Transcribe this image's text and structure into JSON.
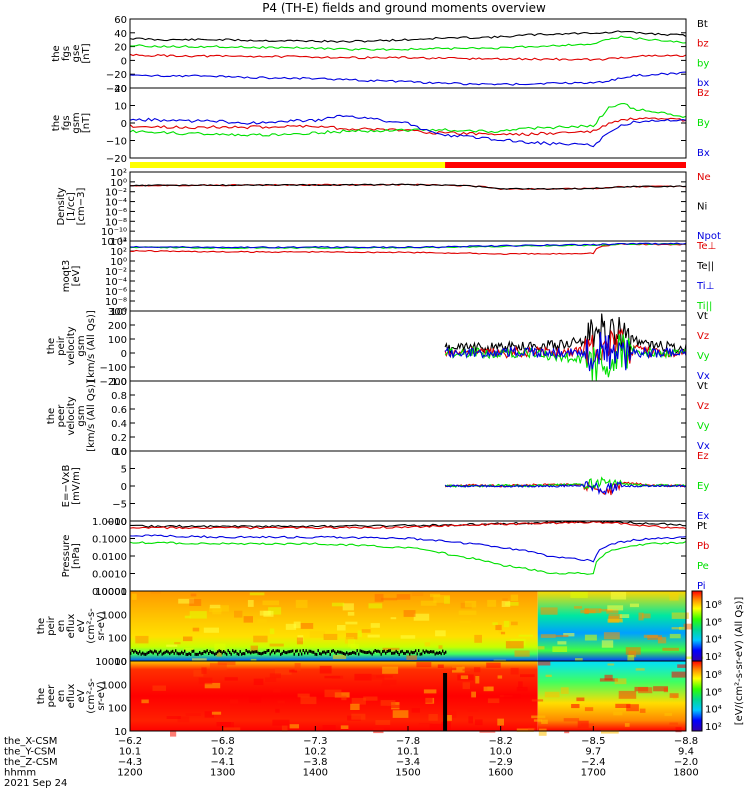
{
  "title": "P4 (TH-E) fields and ground moments overview",
  "colors": {
    "black": "#000000",
    "red": "#e00000",
    "green": "#00e000",
    "blue": "#0000e0",
    "yellow": "#ffff00",
    "barred": "#ff0000"
  },
  "panels": [
    {
      "id": "fgs-gse",
      "ylabel": [
        "the",
        "fgs",
        "gse",
        "[nT]"
      ],
      "yticks": [
        "60",
        "40",
        "20",
        "0",
        "−20",
        "−40"
      ],
      "ylim": [
        -40,
        60
      ],
      "legend": [
        {
          "text": "Bt",
          "color": "black"
        },
        {
          "text": "bz",
          "color": "red"
        },
        {
          "text": "by",
          "color": "green"
        },
        {
          "text": "bx",
          "color": "blue"
        }
      ]
    },
    {
      "id": "fgs-gsm",
      "ylabel": [
        "the",
        "fgs",
        "gsm",
        "[nT]"
      ],
      "yticks": [
        "20",
        "10",
        "0",
        "−10",
        "−20"
      ],
      "ylim": [
        -25,
        25
      ],
      "legend": [
        {
          "text": "Bz",
          "color": "red"
        },
        {
          "text": "By",
          "color": "green"
        },
        {
          "text": "Bx",
          "color": "blue"
        }
      ]
    },
    {
      "id": "density",
      "ylabel": [
        "Density",
        "[1/cc]",
        "[cm−3]"
      ],
      "yticks": [
        "10²",
        "10⁰",
        "10⁻²",
        "10⁻⁴",
        "10⁻⁶",
        "10⁻⁸",
        "10⁻¹⁰",
        "10⁻¹²"
      ],
      "legend": [
        {
          "text": "Ne",
          "color": "red"
        },
        {
          "text": "Ni",
          "color": "black"
        },
        {
          "text": "Npot",
          "color": "blue"
        }
      ]
    },
    {
      "id": "temperature",
      "ylabel": [
        "moqt3",
        "[eV]"
      ],
      "yticks": [
        "10⁴",
        "10²",
        "10⁰",
        "10⁻²",
        "10⁻⁴",
        "10⁻⁶",
        "10⁻⁸",
        "10⁰"
      ],
      "legend": [
        {
          "text": "Te⊥",
          "color": "red"
        },
        {
          "text": "Te||",
          "color": "black"
        },
        {
          "text": "Ti⊥",
          "color": "blue"
        },
        {
          "text": "Ti||",
          "color": "green"
        }
      ]
    },
    {
      "id": "peir-velocity",
      "ylabel": [
        "the",
        "peir",
        "velocity",
        "gsm",
        "[km/s (All Qs)]"
      ],
      "yticks": [
        "300",
        "200",
        "100",
        "0",
        "−100",
        "−200"
      ],
      "ylim": [
        -200,
        300
      ],
      "legend": [
        {
          "text": "Vt",
          "color": "black"
        },
        {
          "text": "Vz",
          "color": "red"
        },
        {
          "text": "Vy",
          "color": "green"
        },
        {
          "text": "Vx",
          "color": "blue"
        }
      ]
    },
    {
      "id": "peer-velocity",
      "ylabel": [
        "the",
        "peer",
        "velocity",
        "gsm",
        "[km/s (All Qs)]"
      ],
      "yticks": [
        "1.0",
        "0.8",
        "0.6",
        "0.4",
        "0.2",
        "0.0"
      ],
      "ylim": [
        0,
        1
      ],
      "legend": [
        {
          "text": "Vt",
          "color": "black"
        },
        {
          "text": "Vz",
          "color": "red"
        },
        {
          "text": "Vy",
          "color": "green"
        },
        {
          "text": "Vx",
          "color": "blue"
        }
      ]
    },
    {
      "id": "efield",
      "ylabel": [
        "E=−VxB",
        "[mV/m]"
      ],
      "yticks": [
        "10",
        "5",
        "0",
        "−5",
        "−10"
      ],
      "ylim": [
        -10,
        10
      ],
      "legend": [
        {
          "text": "Ez",
          "color": "red"
        },
        {
          "text": "Ey",
          "color": "green"
        },
        {
          "text": "Ex",
          "color": "blue"
        }
      ]
    },
    {
      "id": "pressure",
      "ylabel": [
        "Pressure",
        "[nPa]"
      ],
      "yticks": [
        "1.0000",
        "0.1000",
        "0.0100",
        "0.0010",
        "0.0001"
      ],
      "legend": [
        {
          "text": "Pt",
          "color": "black"
        },
        {
          "text": "Pb",
          "color": "red"
        },
        {
          "text": "Pe",
          "color": "green"
        },
        {
          "text": "Pi",
          "color": "blue"
        }
      ]
    },
    {
      "id": "peir-eflux",
      "ylabel": [
        "the",
        "peir",
        "en",
        "eflux",
        "eV",
        "(cm²-s-",
        "sr-eV)"
      ],
      "yticks": [
        "10000",
        "1000",
        "100",
        "10"
      ]
    },
    {
      "id": "peer-eflux",
      "ylabel": [
        "the",
        "peer",
        "en",
        "eflux",
        "eV",
        "(cm²-s-",
        "sr-eV)"
      ],
      "yticks": [
        "10000",
        "1000",
        "100",
        "10"
      ]
    }
  ],
  "colorbar": {
    "label": "[eV/(cm²-s-sr-eV) (All Qs)]",
    "ticks_top": [
      "10⁸",
      "10⁶",
      "10⁴",
      "10²"
    ],
    "ticks_bottom": [
      "10⁸",
      "10⁶",
      "10⁴",
      "10²"
    ]
  },
  "xaxis": {
    "rows": [
      {
        "label": "the_X-CSM",
        "values": [
          "−6.2",
          "−6.8",
          "−7.3",
          "−7.8",
          "−8.2",
          "−8.5",
          "−8.8"
        ]
      },
      {
        "label": "the_Y-CSM",
        "values": [
          "10.1",
          "10.2",
          "10.2",
          "10.1",
          "10.0",
          "9.7",
          "9.4"
        ]
      },
      {
        "label": "the_Z-CSM",
        "values": [
          "−4.3",
          "−4.1",
          "−3.8",
          "−3.4",
          "−2.9",
          "−2.4",
          "−2.0"
        ]
      },
      {
        "label": "hhmm",
        "values": [
          "1200",
          "1300",
          "1400",
          "1500",
          "1600",
          "1700",
          "1800"
        ]
      }
    ],
    "date": "2021 Sep 24"
  },
  "chart_data": [
    {
      "type": "line",
      "title": "P4 (TH-E) fields and ground moments overview",
      "x": [
        1200,
        1230,
        1300,
        1330,
        1400,
        1430,
        1500,
        1530,
        1600,
        1630,
        1700,
        1715,
        1730,
        1745,
        1800
      ],
      "ylim": [
        -40,
        60
      ],
      "series": [
        {
          "name": "Bt",
          "values": [
            32,
            30,
            30,
            29,
            28,
            27,
            30,
            32,
            34,
            37,
            40,
            40,
            42,
            40,
            36
          ]
        },
        {
          "name": "bz",
          "values": [
            8,
            7,
            6,
            6,
            5,
            4,
            4,
            3,
            2,
            2,
            1,
            2,
            4,
            6,
            7
          ]
        },
        {
          "name": "by",
          "values": [
            22,
            20,
            20,
            19,
            18,
            16,
            16,
            17,
            18,
            20,
            24,
            30,
            34,
            32,
            26
          ]
        },
        {
          "name": "bx",
          "values": [
            -22,
            -22,
            -23,
            -25,
            -26,
            -28,
            -31,
            -33,
            -35,
            -34,
            -32,
            -30,
            -26,
            -22,
            -18
          ]
        }
      ]
    },
    {
      "type": "line",
      "x": [
        1200,
        1230,
        1300,
        1330,
        1400,
        1430,
        1500,
        1530,
        1600,
        1630,
        1700,
        1715,
        1730,
        1745,
        1800
      ],
      "ylim": [
        -25,
        25
      ],
      "series": [
        {
          "name": "Bz",
          "values": [
            -2,
            -3,
            -3,
            -3,
            -2,
            -4,
            -5,
            -7,
            -8,
            -8,
            -6,
            -1,
            2,
            3,
            2
          ]
        },
        {
          "name": "By",
          "values": [
            -6,
            -7,
            -8,
            -9,
            -7,
            -6,
            -5,
            -5,
            -6,
            -4,
            -2,
            10,
            14,
            10,
            4
          ]
        },
        {
          "name": "Bx",
          "values": [
            3,
            2,
            1,
            0,
            2,
            5,
            0,
            -8,
            -12,
            -14,
            -16,
            -8,
            -2,
            1,
            2
          ]
        }
      ]
    },
    {
      "type": "line",
      "x": [
        1200,
        1300,
        1400,
        1500,
        1550,
        1600,
        1650,
        1700,
        1730,
        1800
      ],
      "series": [
        {
          "name": "Ne",
          "values": [
            0.3,
            0.35,
            0.4,
            0.45,
            0.3,
            0.05,
            0.05,
            0.06,
            0.15,
            0.2
          ]
        },
        {
          "name": "Ni",
          "values": [
            0.3,
            0.35,
            0.4,
            0.45,
            0.3,
            0.05,
            0.05,
            0.06,
            0.15,
            0.2
          ]
        }
      ]
    },
    {
      "type": "line",
      "x": [
        1200,
        1300,
        1400,
        1500,
        1550,
        1600,
        1650,
        1700,
        1730,
        1800
      ],
      "series": [
        {
          "name": "Te⊥",
          "values": [
            400,
            250,
            250,
            200,
            150,
            100,
            100,
            150,
            8000,
            6000
          ]
        },
        {
          "name": "Ti||",
          "values": [
            2000,
            1500,
            1500,
            1500,
            2000,
            3000,
            4000,
            5000,
            8000,
            9000
          ]
        },
        {
          "name": "Ti⊥",
          "values": [
            2500,
            2000,
            2000,
            2000,
            2500,
            3500,
            5000,
            6000,
            9000,
            10000
          ]
        }
      ]
    },
    {
      "type": "line",
      "x": [
        1540,
        1570,
        1600,
        1630,
        1660,
        1690,
        1710,
        1730,
        1760,
        1800
      ],
      "ylim": [
        -200,
        300
      ],
      "series": [
        {
          "name": "Vt",
          "values": [
            30,
            40,
            40,
            50,
            60,
            80,
            160,
            120,
            60,
            30
          ]
        },
        {
          "name": "Vz",
          "values": [
            10,
            10,
            0,
            10,
            0,
            20,
            60,
            30,
            10,
            0
          ]
        },
        {
          "name": "Vy",
          "values": [
            0,
            10,
            -10,
            0,
            -20,
            -60,
            -100,
            20,
            0,
            0
          ]
        },
        {
          "name": "Vx",
          "values": [
            0,
            0,
            10,
            0,
            0,
            10,
            10,
            0,
            0,
            0
          ]
        }
      ]
    },
    {
      "type": "line",
      "x": [
        1540,
        1570,
        1600,
        1630,
        1660,
        1690,
        1710,
        1730,
        1760,
        1800
      ],
      "ylim": [
        -10,
        10
      ],
      "series": [
        {
          "name": "Ez",
          "values": [
            0,
            0.2,
            0,
            0.3,
            0.4,
            0.5,
            -3,
            1,
            0.3,
            0
          ]
        },
        {
          "name": "Ey",
          "values": [
            0,
            -0.1,
            0.2,
            0,
            0.3,
            0.5,
            1,
            0.5,
            0.2,
            0.1
          ]
        },
        {
          "name": "Ex",
          "values": [
            0,
            0,
            0,
            0,
            0,
            0.2,
            -1,
            0,
            0,
            0
          ]
        }
      ]
    },
    {
      "type": "line",
      "x": [
        1200,
        1300,
        1400,
        1500,
        1550,
        1600,
        1650,
        1700,
        1720,
        1760,
        1800
      ],
      "series": [
        {
          "name": "Pt",
          "values": [
            0.5,
            0.5,
            0.5,
            0.55,
            0.6,
            0.7,
            0.8,
            0.9,
            0.9,
            0.7,
            0.6
          ]
        },
        {
          "name": "Pb",
          "values": [
            0.4,
            0.4,
            0.4,
            0.45,
            0.55,
            0.65,
            0.75,
            0.85,
            0.8,
            0.5,
            0.4
          ]
        },
        {
          "name": "Pe",
          "values": [
            0.06,
            0.05,
            0.05,
            0.03,
            0.01,
            0.003,
            0.001,
            0.001,
            0.02,
            0.05,
            0.06
          ]
        },
        {
          "name": "Pi",
          "values": [
            0.15,
            0.12,
            0.12,
            0.1,
            0.06,
            0.03,
            0.01,
            0.005,
            0.05,
            0.1,
            0.12
          ]
        }
      ]
    },
    {
      "type": "heatmap",
      "ylabel": "eV",
      "yticks": [
        10000,
        1000,
        100,
        10
      ]
    },
    {
      "type": "heatmap",
      "ylabel": "eV",
      "yticks": [
        10000,
        1000,
        100,
        10
      ]
    }
  ]
}
